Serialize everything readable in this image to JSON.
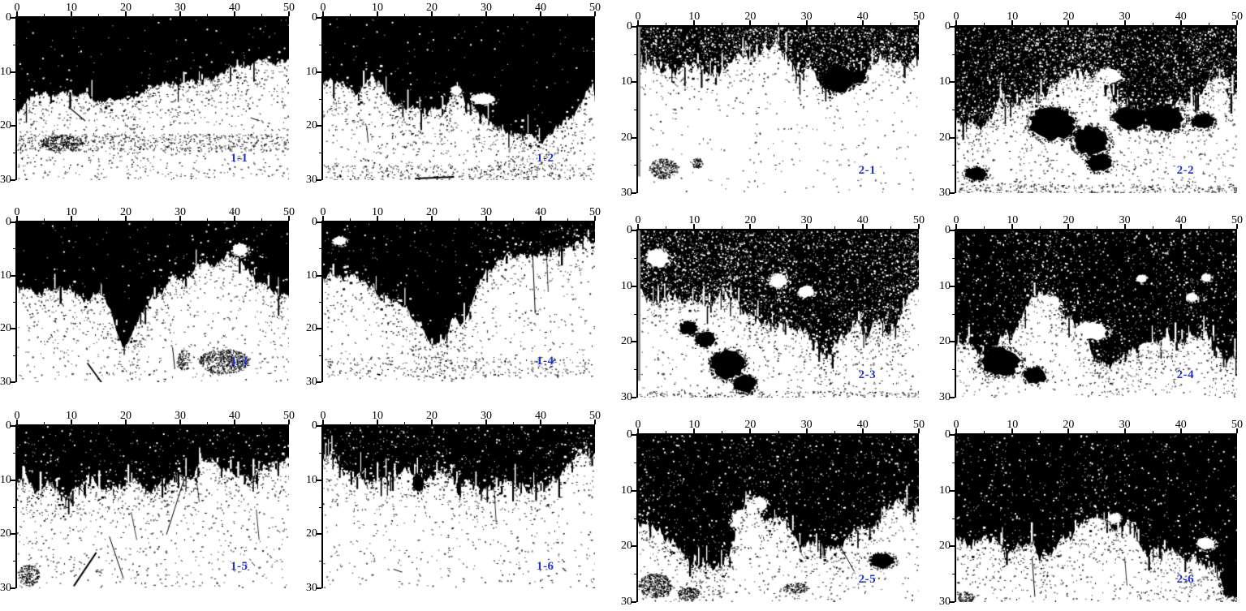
{
  "colors": {
    "foreground": "#000000",
    "background": "#ffffff",
    "panel_label": "#2233cc",
    "axis": "#000000",
    "edge_artifact_gray": "#8f8f8f"
  },
  "axes": {
    "x_tick_labels": [
      "0",
      "10",
      "20",
      "30",
      "40",
      "50"
    ],
    "y_tick_labels": [
      "0",
      "10",
      "20",
      "30"
    ],
    "x_major_values": [
      0,
      10,
      20,
      30,
      40,
      50
    ],
    "x_minor_values": [
      5,
      15,
      25,
      35,
      45
    ],
    "y_major_values": [
      0,
      10,
      20,
      30
    ],
    "y_minor_values": [
      5,
      15,
      25
    ],
    "x_range": [
      0,
      50
    ],
    "y_range": [
      0,
      30
    ]
  },
  "chart_data": {
    "type": "heatmap",
    "subtype": "binary-image-panel-grid",
    "grid": {
      "rows": 3,
      "cols": 4
    },
    "x_sample_points": [
      0,
      5,
      10,
      15,
      20,
      25,
      30,
      35,
      40,
      45,
      50
    ],
    "panels": [
      {
        "label": "1-1",
        "black_depth_profile": [
          17.5,
          15,
          14.5,
          15.5,
          15,
          13.5,
          12.5,
          12.5,
          10.5,
          8.5,
          8
        ],
        "texture": {
          "seed": 101,
          "rough": 0.35,
          "salt": 90,
          "fringe": 60,
          "pepper_near": 300,
          "pepper_low": 650
        },
        "bands": [
          [
            23,
            1.6,
            520
          ]
        ],
        "clusters": [
          [
            8,
            23,
            4,
            1.5,
            260
          ]
        ],
        "scratches": [
          [
            9.5,
            16.5,
            12.5,
            19,
            1.2
          ],
          [
            43,
            18.5,
            44.5,
            19,
            1
          ]
        ]
      },
      {
        "label": "1-2",
        "black_depth_profile": [
          12.5,
          13,
          12,
          16,
          17.5,
          15.5,
          18,
          21,
          21.5,
          19,
          13
        ],
        "texture": {
          "seed": 202,
          "rough": 0.4,
          "salt": 120,
          "fringe": 100,
          "pepper_near": 350,
          "pepper_low": 550
        },
        "holes": [
          [
            29.5,
            15,
            2.2,
            1
          ],
          [
            24.5,
            13.5,
            1,
            0.9
          ]
        ],
        "bands": [
          [
            28.5,
            1.4,
            260
          ]
        ],
        "scratches": [
          [
            17,
            29.7,
            24,
            29.4,
            1.8
          ],
          [
            8,
            20,
            8.3,
            23,
            0.9
          ]
        ]
      },
      {
        "label": "2-1",
        "black_depth_profile": [
          7.5,
          7,
          7,
          6.5,
          5.5,
          6.5,
          7,
          8,
          7,
          6,
          6.5
        ],
        "texture": {
          "seed": 303,
          "rough": 0.55,
          "salt": 1500,
          "fringe": 140,
          "pepper_near": 260,
          "pepper_low": 240
        },
        "blobs": [
          [
            35.5,
            9.5,
            2.8,
            2.2
          ],
          [
            39,
            9,
            1.6,
            1.2
          ]
        ],
        "clusters": [
          [
            4.5,
            25.5,
            2.6,
            1.8,
            240
          ],
          [
            10.5,
            24.5,
            1,
            0.9,
            70
          ]
        ],
        "left_gray": true
      },
      {
        "label": "2-2",
        "black_depth_profile": [
          17,
          16.5,
          14.5,
          9,
          8,
          9,
          13,
          15.5,
          12,
          11,
          12
        ],
        "texture": {
          "seed": 404,
          "rough": 0.55,
          "salt": 2200,
          "fringe": 140,
          "pepper_near": 400,
          "pepper_low": 600
        },
        "blobs": [
          [
            17,
            17.5,
            4,
            2.8
          ],
          [
            24,
            20.5,
            3.2,
            2.6
          ],
          [
            25.5,
            24.5,
            2.2,
            1.6
          ],
          [
            31,
            16.5,
            3,
            2
          ],
          [
            37,
            16.5,
            3.6,
            2.4
          ],
          [
            44,
            17,
            2,
            1.4
          ],
          [
            3.5,
            26.5,
            2,
            1.2
          ]
        ],
        "holes": [
          [
            22,
            11,
            3,
            1.6
          ],
          [
            27,
            9,
            2.4,
            1.4
          ],
          [
            47,
            10.5,
            1.6,
            1.2
          ]
        ],
        "bands": [
          [
            29.2,
            0.9,
            300
          ]
        ]
      },
      {
        "label": "1-3",
        "black_depth_profile": [
          12.5,
          13.5,
          12,
          13.5,
          22,
          14,
          11,
          7.5,
          6,
          12,
          13
        ],
        "texture": {
          "seed": 505,
          "rough": 0.45,
          "salt": 140,
          "fringe": 80,
          "pepper_near": 300,
          "pepper_low": 480
        },
        "clusters": [
          [
            38,
            26,
            4.6,
            2.4,
            480
          ],
          [
            30.6,
            25.8,
            1.2,
            2,
            90
          ]
        ],
        "holes": [
          [
            41,
            5.2,
            1.5,
            1.1
          ]
        ],
        "scratches": [
          [
            13,
            26.5,
            15.5,
            30,
            1.8
          ],
          [
            28.6,
            23.5,
            29,
            27.5,
            1
          ],
          [
            20.5,
            5,
            17,
            9,
            0.8
          ]
        ]
      },
      {
        "label": "1-4",
        "black_depth_profile": [
          10,
          10.5,
          12.5,
          15,
          22,
          17,
          8,
          6,
          5,
          4,
          4
        ],
        "texture": {
          "seed": 606,
          "rough": 0.45,
          "salt": 200,
          "fringe": 100,
          "pepper_near": 260,
          "pepper_low": 460
        },
        "holes": [
          [
            3,
            3.5,
            1.2,
            0.9
          ]
        ],
        "bands": [
          [
            27,
            1.8,
            240
          ]
        ],
        "scratches": [
          [
            38.5,
            5,
            39,
            17,
            1
          ],
          [
            41,
            4,
            41.4,
            13,
            0.8
          ],
          [
            10.5,
            9,
            12,
            12,
            0.8
          ]
        ]
      },
      {
        "label": "2-3",
        "black_depth_profile": [
          10,
          11,
          14.5,
          12,
          16,
          18,
          20,
          22.5,
          21,
          19.5,
          12
        ],
        "texture": {
          "seed": 707,
          "rough": 0.6,
          "salt": 2600,
          "fringe": 150,
          "pepper_near": 350,
          "pepper_low": 430
        },
        "blobs": [
          [
            12,
            19.5,
            1.8,
            1.4
          ],
          [
            16,
            24,
            3,
            2.6
          ],
          [
            19,
            27.5,
            2,
            1.6
          ],
          [
            9,
            17.5,
            1.6,
            1.2
          ]
        ],
        "holes": [
          [
            3.5,
            5,
            2,
            1.6
          ],
          [
            25,
            9,
            1.6,
            1.2
          ],
          [
            30,
            11,
            1.4,
            1
          ]
        ],
        "bands": [
          [
            29.4,
            0.6,
            180
          ]
        ],
        "left_gray": true
      },
      {
        "label": "2-4",
        "black_depth_profile": [
          20,
          23,
          19,
          11,
          16,
          24,
          21,
          21,
          20,
          21.5,
          22
        ],
        "texture": {
          "seed": 808,
          "rough": 0.55,
          "salt": 1300,
          "fringe": 130,
          "pepper_near": 360,
          "pepper_low": 400
        },
        "holes": [
          [
            16.5,
            13.5,
            2,
            1.8
          ],
          [
            24,
            18,
            3,
            1.6
          ],
          [
            22,
            21.5,
            1.6,
            1.2
          ],
          [
            34.5,
            21,
            1.8,
            1
          ],
          [
            42,
            12,
            1,
            0.8
          ],
          [
            44.5,
            8.5,
            0.9,
            0.7
          ],
          [
            33,
            8.7,
            0.9,
            0.7
          ]
        ],
        "blobs": [
          [
            8,
            23.5,
            3.4,
            2.4
          ],
          [
            14,
            26,
            2,
            1.5
          ]
        ]
      },
      {
        "label": "1-5",
        "black_depth_profile": [
          10,
          11,
          12,
          11,
          10.5,
          11.5,
          10,
          7,
          8,
          7,
          5.5
        ],
        "texture": {
          "seed": 909,
          "rough": 0.5,
          "salt": 240,
          "fringe": 170,
          "pepper_near": 400,
          "pepper_low": 580
        },
        "clusters": [
          [
            2,
            27.5,
            2,
            2,
            170
          ]
        ],
        "scratches": [
          [
            10.5,
            29.5,
            14.5,
            23.5,
            2
          ],
          [
            17,
            20.5,
            19.5,
            28,
            1
          ],
          [
            30.5,
            10.5,
            27.5,
            20,
            1
          ],
          [
            21,
            16,
            22,
            21,
            0.8
          ],
          [
            44,
            15.5,
            44.5,
            21,
            0.8
          ],
          [
            33,
            10,
            33.5,
            14,
            0.8
          ]
        ]
      },
      {
        "label": "1-6",
        "black_depth_profile": [
          6,
          9,
          10.5,
          10,
          9.5,
          10.5,
          10,
          9.5,
          10.5,
          9,
          8
        ],
        "texture": {
          "seed": 1010,
          "rough": 0.5,
          "salt": 380,
          "fringe": 190,
          "pepper_near": 300,
          "pepper_low": 430
        },
        "blobs": [
          [
            17.5,
            10.5,
            1,
            1.7
          ]
        ],
        "scratches": [
          [
            31.5,
            12,
            31.8,
            17.5,
            0.8
          ],
          [
            13,
            26.5,
            14.5,
            27,
            1
          ]
        ]
      },
      {
        "label": "2-5",
        "black_depth_profile": [
          15.5,
          18,
          22,
          24,
          12,
          15,
          19,
          22.5,
          18,
          12.5,
          13
        ],
        "texture": {
          "seed": 1111,
          "rough": 0.6,
          "salt": 800,
          "fringe": 140,
          "pepper_near": 360,
          "pepper_low": 430
        },
        "blobs": [
          [
            43.5,
            22.5,
            2.2,
            1.3
          ]
        ],
        "clusters": [
          [
            3,
            27,
            3,
            2.2,
            400
          ],
          [
            9,
            28.5,
            2,
            1.2,
            160
          ],
          [
            28,
            27.5,
            2.4,
            1,
            120
          ]
        ],
        "holes": [
          [
            19,
            15.5,
            2.4,
            2
          ],
          [
            21.5,
            12.5,
            1.6,
            1.2
          ]
        ],
        "scratches": [
          [
            36,
            20,
            38.5,
            24.5,
            1
          ]
        ]
      },
      {
        "label": "2-6",
        "black_depth_profile": [
          18,
          19,
          21.5,
          23,
          20,
          15.5,
          16,
          20,
          21,
          22,
          23.5
        ],
        "texture": {
          "seed": 1212,
          "rough": 0.55,
          "salt": 650,
          "fringe": 130,
          "pepper_near": 320,
          "pepper_low": 400
        },
        "blobs": [
          [
            49,
            26,
            2,
            3
          ]
        ],
        "holes": [
          [
            25,
            16,
            1.4,
            1
          ],
          [
            28.2,
            15,
            1.2,
            0.9
          ],
          [
            44.5,
            19.5,
            1.6,
            1.1
          ]
        ],
        "clusters": [
          [
            1.5,
            29,
            1.6,
            1,
            90
          ]
        ],
        "scratches": [
          [
            13.5,
            22,
            14,
            29,
            1
          ],
          [
            30,
            22,
            30.4,
            27,
            0.8
          ]
        ]
      }
    ]
  }
}
